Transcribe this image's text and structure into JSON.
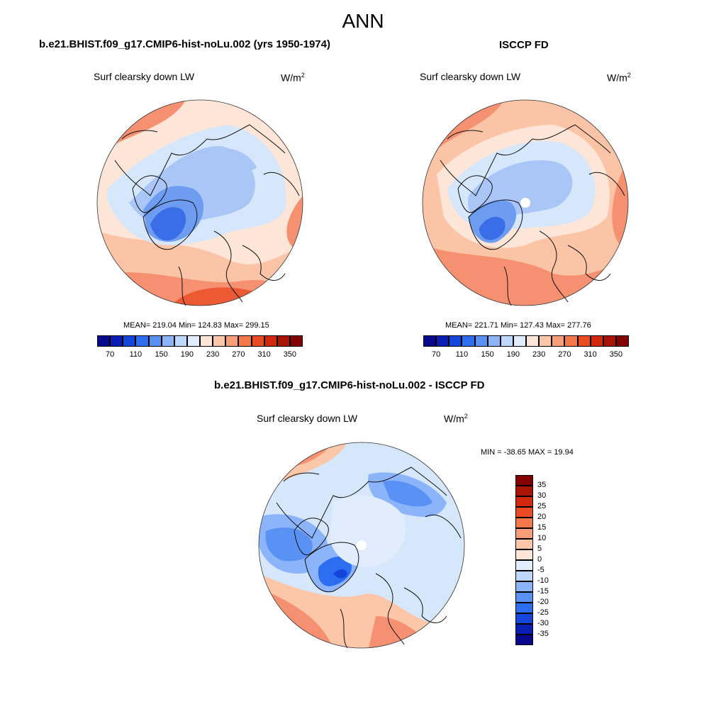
{
  "main_title": "ANN",
  "panels": [
    {
      "title": "b.e21.BHIST.f09_g17.CMIP6-hist-noLu.002 (yrs 1950-1974)",
      "variable": "Surf clearsky down LW",
      "units": "W/m",
      "units_sup": "2",
      "stats": "MEAN= 219.04  Min= 124.83  Max= 299.15"
    },
    {
      "title": "ISCCP FD",
      "variable": "Surf clearsky down LW",
      "units": "W/m",
      "units_sup": "2",
      "stats": "MEAN= 221.71  Min= 127.43  Max= 277.76"
    },
    {
      "title": "b.e21.BHIST.f09_g17.CMIP6-hist-noLu.002 - ISCCP FD",
      "variable": "Surf clearsky down LW",
      "units": "W/m",
      "units_sup": "2",
      "stats": "MIN = -38.65 MAX =  19.94"
    }
  ],
  "abs_colorbar": {
    "colors": [
      "#08088c",
      "#0a1eb4",
      "#1446dc",
      "#2d6ef0",
      "#5a91f5",
      "#8cb4fa",
      "#bed7fc",
      "#e1edfd",
      "#fde6d8",
      "#fcc6a8",
      "#fa9e78",
      "#f5784b",
      "#eb4b23",
      "#d2280f",
      "#aa1405",
      "#820000"
    ],
    "labels": [
      "70",
      "110",
      "150",
      "190",
      "230",
      "270",
      "310",
      "350"
    ]
  },
  "diff_colorbar": {
    "colors": [
      "#820000",
      "#aa1405",
      "#d2280f",
      "#eb4b23",
      "#f5784b",
      "#fa9e78",
      "#fcc6a8",
      "#fde6d8",
      "#e1edfd",
      "#bed7fc",
      "#8cb4fa",
      "#5a91f5",
      "#2d6ef0",
      "#1446dc",
      "#0a1eb4",
      "#08088c"
    ],
    "labels": [
      "35",
      "30",
      "25",
      "20",
      "15",
      "10",
      "5",
      "0",
      "-5",
      "-10",
      "-15",
      "-20",
      "-25",
      "-30",
      "-35"
    ]
  },
  "map_palette": {
    "warm_dark": "#eb5a32",
    "warm_mid": "#f59070",
    "warm_light": "#fbc4a6",
    "warm_pale": "#fde6d8",
    "cool_pale": "#d6e6fb",
    "cool_light": "#a9c6f7",
    "cool_mid": "#6e9cf0",
    "cool_dark": "#3a6ee8",
    "coast": "#111111"
  }
}
